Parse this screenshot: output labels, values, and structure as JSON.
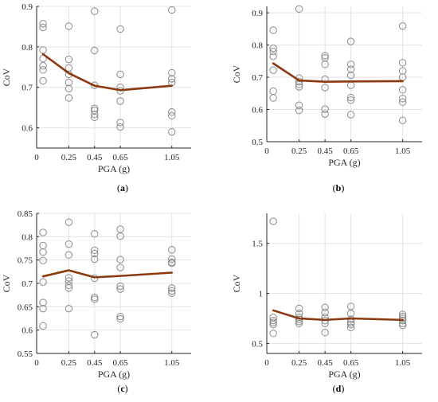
{
  "chart_data": [
    {
      "type": "scatter",
      "caption": {
        "open": "(",
        "letter": "a",
        "close": ")"
      },
      "xlabel": "PGA (g)",
      "ylabel": "CoV",
      "xlim": [
        0,
        1.2
      ],
      "ylim": [
        0.55,
        0.9
      ],
      "xticks": [
        {
          "v": 0,
          "label": "0"
        },
        {
          "v": 0.25,
          "label": "0.25"
        },
        {
          "v": 0.45,
          "label": "0.45"
        },
        {
          "v": 0.65,
          "label": "0.65"
        },
        {
          "v": 1.05,
          "label": "1.05"
        }
      ],
      "yticks": [
        {
          "v": 0.6,
          "label": "0.6"
        },
        {
          "v": 0.7,
          "label": "0.7"
        },
        {
          "v": 0.8,
          "label": "0.8"
        },
        {
          "v": 0.9,
          "label": "0.9"
        }
      ],
      "grid": true,
      "points": {
        "0.05": [
          0.857,
          0.848,
          0.792,
          0.771,
          0.753,
          0.743,
          0.716
        ],
        "0.25": [
          0.851,
          0.769,
          0.748,
          0.732,
          0.712,
          0.697,
          0.674
        ],
        "0.45": [
          0.888,
          0.791,
          0.705,
          0.648,
          0.643,
          0.633,
          0.626
        ],
        "0.65": [
          0.844,
          0.732,
          0.7,
          0.691,
          0.666,
          0.613,
          0.602
        ],
        "1.05": [
          0.891,
          0.736,
          0.721,
          0.712,
          0.639,
          0.63,
          0.59
        ]
      },
      "mean_line": {
        "x": [
          0.05,
          0.25,
          0.45,
          0.65,
          1.05
        ],
        "y": [
          0.782,
          0.735,
          0.704,
          0.693,
          0.704
        ]
      }
    },
    {
      "type": "scatter",
      "caption": {
        "open": "(",
        "letter": "b",
        "close": ")"
      },
      "xlabel": "PGA (g)",
      "ylabel": "CoV",
      "xlim": [
        0,
        1.2
      ],
      "ylim": [
        0.5,
        0.92
      ],
      "xticks": [
        {
          "v": 0,
          "label": "0"
        },
        {
          "v": 0.25,
          "label": "0.25"
        },
        {
          "v": 0.45,
          "label": "0.45"
        },
        {
          "v": 0.65,
          "label": "0.65"
        },
        {
          "v": 1.05,
          "label": "1.05"
        }
      ],
      "yticks": [
        {
          "v": 0.5,
          "label": "0.5"
        },
        {
          "v": 0.6,
          "label": "0.6"
        },
        {
          "v": 0.7,
          "label": "0.7"
        },
        {
          "v": 0.8,
          "label": "0.8"
        },
        {
          "v": 0.9,
          "label": "0.9"
        }
      ],
      "grid": true,
      "points": {
        "0.05": [
          0.846,
          0.79,
          0.78,
          0.765,
          0.722,
          0.657,
          0.636
        ],
        "0.25": [
          0.912,
          0.697,
          0.686,
          0.678,
          0.67,
          0.613,
          0.597
        ],
        "0.45": [
          0.767,
          0.76,
          0.74,
          0.694,
          0.668,
          0.601,
          0.586
        ],
        "0.65": [
          0.811,
          0.74,
          0.725,
          0.706,
          0.675,
          0.637,
          0.629,
          0.584
        ],
        "1.05": [
          0.859,
          0.745,
          0.72,
          0.7,
          0.661,
          0.634,
          0.623,
          0.566
        ]
      },
      "mean_line": {
        "x": [
          0.05,
          0.25,
          0.45,
          0.65,
          1.05
        ],
        "y": [
          0.743,
          0.69,
          0.686,
          0.687,
          0.688
        ]
      }
    },
    {
      "type": "scatter",
      "caption": {
        "open": "(",
        "letter": "c",
        "close": ")"
      },
      "xlabel": "PGA (g)",
      "ylabel": "CoV",
      "xlim": [
        0,
        1.2
      ],
      "ylim": [
        0.55,
        0.85
      ],
      "xticks": [
        {
          "v": 0,
          "label": "0"
        },
        {
          "v": 0.25,
          "label": "0.25"
        },
        {
          "v": 0.45,
          "label": "0.45"
        },
        {
          "v": 0.65,
          "label": "0.65"
        },
        {
          "v": 1.05,
          "label": "1.05"
        }
      ],
      "yticks": [
        {
          "v": 0.55,
          "label": "0.55"
        },
        {
          "v": 0.6,
          "label": "0.6"
        },
        {
          "v": 0.65,
          "label": "0.65"
        },
        {
          "v": 0.7,
          "label": "0.7"
        },
        {
          "v": 0.75,
          "label": "0.75"
        },
        {
          "v": 0.8,
          "label": "0.8"
        },
        {
          "v": 0.85,
          "label": "0.85"
        }
      ],
      "grid": true,
      "points": {
        "0.05": [
          0.809,
          0.781,
          0.767,
          0.749,
          0.703,
          0.659,
          0.646,
          0.609
        ],
        "0.25": [
          0.831,
          0.784,
          0.761,
          0.712,
          0.705,
          0.696,
          0.69,
          0.646
        ],
        "0.45": [
          0.806,
          0.771,
          0.764,
          0.752,
          0.711,
          0.67,
          0.666,
          0.59
        ],
        "0.65": [
          0.816,
          0.801,
          0.751,
          0.734,
          0.694,
          0.688,
          0.629,
          0.624
        ],
        "1.05": [
          0.772,
          0.752,
          0.745,
          0.743,
          0.69,
          0.684,
          0.679
        ]
      },
      "mean_line": {
        "x": [
          0.05,
          0.25,
          0.45,
          0.65,
          1.05
        ],
        "y": [
          0.715,
          0.728,
          0.713,
          0.716,
          0.723
        ]
      }
    },
    {
      "type": "scatter",
      "caption": {
        "open": "(",
        "letter": "d",
        "close": ")"
      },
      "xlabel": "PGA (g)",
      "ylabel": "CoV",
      "xlim": [
        0,
        1.2
      ],
      "ylim": [
        0.4,
        1.8
      ],
      "xticks": [
        {
          "v": 0,
          "label": "0"
        },
        {
          "v": 0.25,
          "label": "0.25"
        },
        {
          "v": 0.45,
          "label": "0.45"
        },
        {
          "v": 0.65,
          "label": "0.65"
        },
        {
          "v": 1.05,
          "label": "1.05"
        }
      ],
      "yticks": [
        {
          "v": 0.5,
          "label": "0.5"
        },
        {
          "v": 1.0,
          "label": "1"
        },
        {
          "v": 1.5,
          "label": "1.5"
        }
      ],
      "grid": true,
      "points": {
        "0.05": [
          1.72,
          0.76,
          0.73,
          0.71,
          0.69,
          0.6
        ],
        "0.25": [
          0.85,
          0.8,
          0.76,
          0.74,
          0.72,
          0.7
        ],
        "0.45": [
          0.86,
          0.81,
          0.76,
          0.73,
          0.7,
          0.61
        ],
        "0.65": [
          0.87,
          0.8,
          0.74,
          0.71,
          0.69,
          0.66
        ],
        "1.05": [
          0.79,
          0.77,
          0.75,
          0.73,
          0.7,
          0.68
        ]
      },
      "mean_line": {
        "x": [
          0.05,
          0.25,
          0.45,
          0.65,
          1.05
        ],
        "y": [
          0.83,
          0.75,
          0.735,
          0.75,
          0.735
        ]
      }
    }
  ],
  "colors": {
    "mean_line": "#8B3A0F",
    "marker": "#8a8a8a",
    "grid": "#e3e3e3",
    "axis": "#262626"
  }
}
